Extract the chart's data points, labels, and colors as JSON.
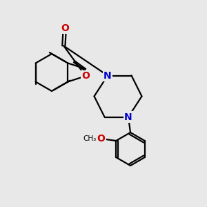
{
  "bg_color": "#e8e8e8",
  "bond_color": "#000000",
  "N_color": "#0000cc",
  "O_color": "#cc0000",
  "font_size": 10,
  "bond_width": 1.6,
  "xlim": [
    0,
    10
  ],
  "ylim": [
    0,
    10
  ]
}
